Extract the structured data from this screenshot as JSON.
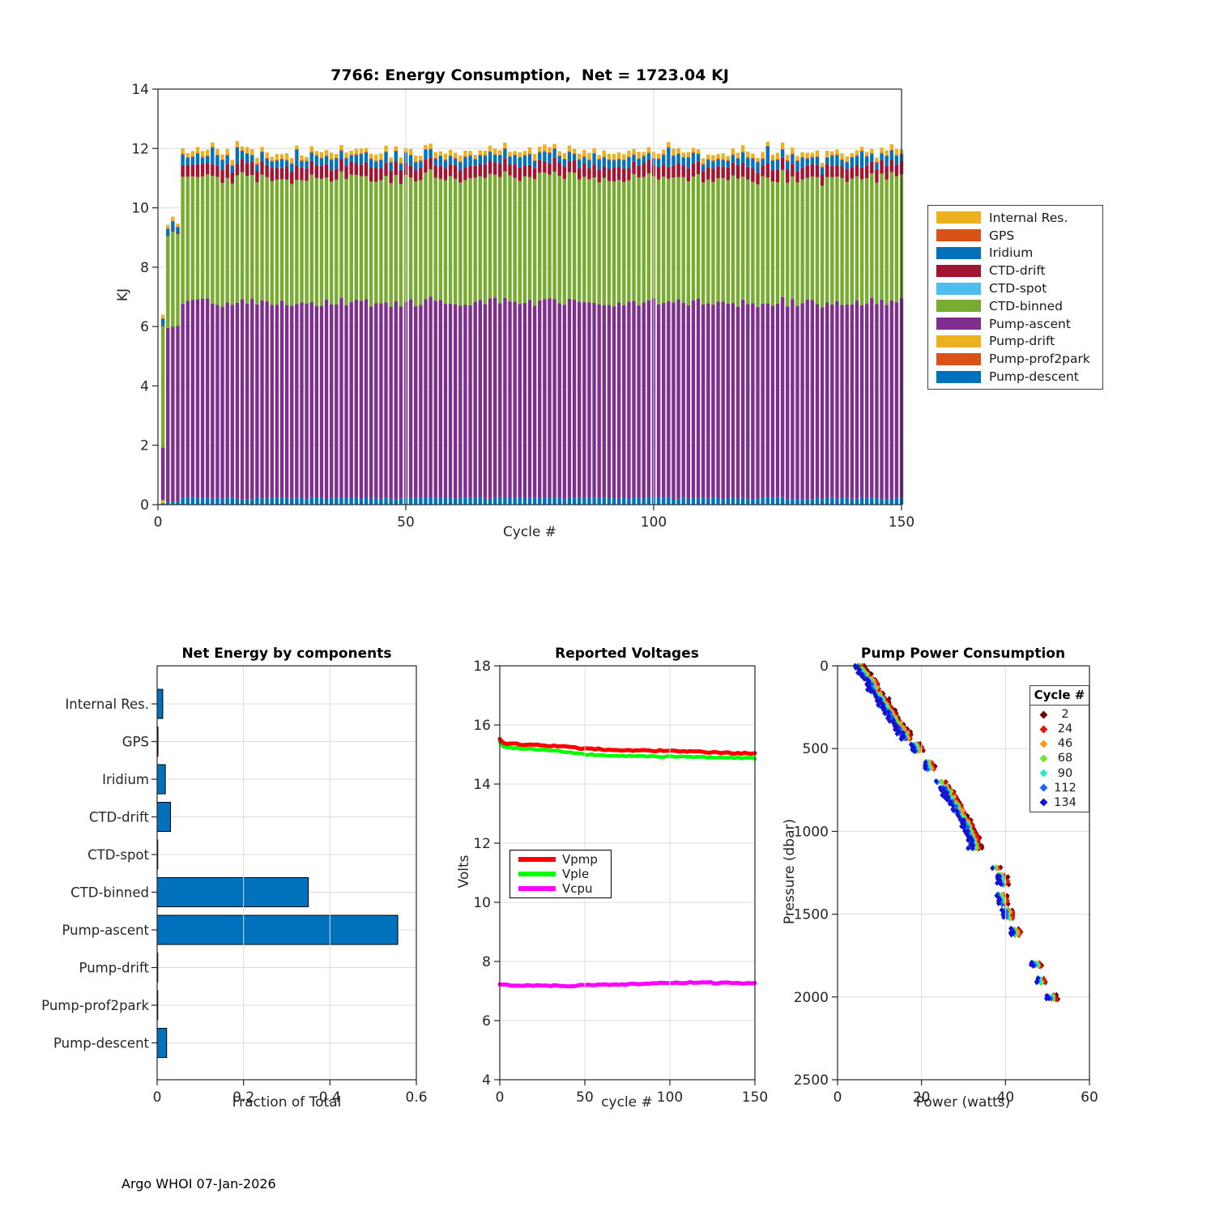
{
  "figure": {
    "footer": "Argo WHOI 07-Jan-2026",
    "background": "#ffffff",
    "axis_color": "#262626",
    "grid_color": "#dcdcdc"
  },
  "chart_data": [
    {
      "id": "energy",
      "type": "bar",
      "stacked": true,
      "title": "7766: Energy Consumption,  Net = 1723.04 KJ",
      "xlabel": "Cycle #",
      "ylabel": "KJ",
      "xlim": [
        0,
        150
      ],
      "ylim": [
        0,
        14
      ],
      "xticks": [
        0,
        50,
        100,
        150
      ],
      "yticks": [
        0,
        2,
        4,
        6,
        8,
        10,
        12,
        14
      ],
      "grid": true,
      "n_cycles": 150,
      "legend": [
        "Internal Res.",
        "GPS",
        "Iridium",
        "CTD-drift",
        "CTD-spot",
        "CTD-binned",
        "Pump-ascent",
        "Pump-drift",
        "Pump-prof2park",
        "Pump-descent"
      ],
      "stack_order": [
        "Pump-descent",
        "Pump-prof2park",
        "Pump-drift",
        "Pump-ascent",
        "CTD-binned",
        "CTD-spot",
        "CTD-drift",
        "Iridium",
        "GPS",
        "Internal Res."
      ],
      "colors": {
        "Internal Res.": "#EDB120",
        "GPS": "#D95319",
        "Iridium": "#0072BD",
        "CTD-drift": "#A2142F",
        "CTD-spot": "#4DBEEE",
        "CTD-binned": "#77AC30",
        "Pump-ascent": "#7E2F8E",
        "Pump-drift": "#EDB120",
        "Pump-prof2park": "#D95319",
        "Pump-descent": "#0072BD"
      },
      "baseline_kj": {
        "Pump-descent": 0.22,
        "Pump-prof2park": 0,
        "Pump-drift": 0,
        "Pump-ascent": 6.6,
        "CTD-binned": 4.2,
        "CTD-spot": 0,
        "CTD-drift": 0.42,
        "Iridium": 0.28,
        "GPS": 0.03,
        "Internal Res.": 0.17
      },
      "variation_kj": {
        "Pump-descent": 0.04,
        "Pump-prof2park": 0,
        "Pump-drift": 0,
        "Pump-ascent": 0.15,
        "CTD-binned": 0.12,
        "CTD-spot": 0,
        "CTD-drift": 0.05,
        "Iridium": 0.08,
        "GPS": 0.005,
        "Internal Res.": 0.05
      },
      "iridium_spike_kj": 0.32,
      "first_cycles": {
        "1": {
          "Pump-descent": 0.05,
          "Pump-prof2park": 0,
          "Pump-drift": 0.1,
          "Pump-ascent": 1.78,
          "CTD-binned": 4.08,
          "CTD-spot": 0,
          "CTD-drift": 0.03,
          "Iridium": 0.22,
          "GPS": 0.02,
          "Internal Res.": 0.12
        },
        "2": {
          "Pump-descent": 0.1,
          "Pump-prof2park": 0,
          "Pump-drift": 0,
          "Pump-ascent": 5.85,
          "CTD-binned": 3.1,
          "CTD-spot": 0,
          "CTD-drift": 0.04,
          "Iridium": 0.2,
          "GPS": 0.02,
          "Internal Res.": 0.12
        },
        "3": {
          "Pump-descent": 0.1,
          "Pump-prof2park": 0,
          "Pump-drift": 0,
          "Pump-ascent": 5.9,
          "CTD-binned": 3.2,
          "CTD-spot": 0,
          "CTD-drift": 0.04,
          "Iridium": 0.3,
          "GPS": 0.02,
          "Internal Res.": 0.14
        },
        "4": {
          "Pump-descent": 0.1,
          "Pump-prof2park": 0,
          "Pump-drift": 0,
          "Pump-ascent": 5.92,
          "CTD-binned": 3.1,
          "CTD-spot": 0,
          "CTD-drift": 0.05,
          "Iridium": 0.18,
          "GPS": 0.02,
          "Internal Res.": 0.1
        }
      },
      "seed": 7766
    },
    {
      "id": "net-energy",
      "type": "bar",
      "orientation": "horizontal",
      "title": "Net Energy by components",
      "xlabel": "Fraction of Total",
      "categories": [
        "Internal Res.",
        "GPS",
        "Iridium",
        "CTD-drift",
        "CTD-spot",
        "CTD-binned",
        "Pump-ascent",
        "Pump-drift",
        "Pump-prof2park",
        "Pump-descent"
      ],
      "values": [
        0.013,
        0.002,
        0.019,
        0.031,
        0.001,
        0.35,
        0.557,
        0.001,
        0.001,
        0.022
      ],
      "xlim": [
        0,
        0.6
      ],
      "xticks": [
        0,
        0.2,
        0.4,
        0.6
      ],
      "grid": true,
      "bar_color": "#0072BD",
      "bar_edge": "#000000"
    },
    {
      "id": "voltages",
      "type": "line",
      "title": "Reported Voltages",
      "xlabel": "cycle #",
      "ylabel": "Volts",
      "xlim": [
        0,
        150
      ],
      "ylim": [
        4,
        18
      ],
      "xticks": [
        0,
        50,
        100,
        150
      ],
      "yticks": [
        4,
        6,
        8,
        10,
        12,
        14,
        16,
        18
      ],
      "grid": true,
      "series": [
        {
          "name": "Vpmp",
          "color": "#FF0000",
          "width": 5,
          "points": [
            [
              0,
              15.5
            ],
            [
              2,
              15.38
            ],
            [
              10,
              15.35
            ],
            [
              30,
              15.3
            ],
            [
              50,
              15.2
            ],
            [
              70,
              15.15
            ],
            [
              100,
              15.12
            ],
            [
              130,
              15.06
            ],
            [
              150,
              15.03
            ]
          ]
        },
        {
          "name": "Vple",
          "color": "#00FF00",
          "width": 4.5,
          "points": [
            [
              0,
              15.45
            ],
            [
              2,
              15.25
            ],
            [
              10,
              15.22
            ],
            [
              30,
              15.15
            ],
            [
              50,
              15.0
            ],
            [
              70,
              14.95
            ],
            [
              100,
              14.93
            ],
            [
              130,
              14.9
            ],
            [
              150,
              14.88
            ]
          ]
        },
        {
          "name": "Vcpu",
          "color": "#FF00FF",
          "width": 5,
          "points": [
            [
              0,
              7.2
            ],
            [
              40,
              7.18
            ],
            [
              80,
              7.24
            ],
            [
              110,
              7.28
            ],
            [
              150,
              7.27
            ]
          ]
        }
      ]
    },
    {
      "id": "pump-power",
      "type": "scatter",
      "title": "Pump Power Consumption",
      "xlabel": "Power (watts)",
      "ylabel": "Pressure (dbar)",
      "xlim": [
        0,
        60
      ],
      "ylim": [
        0,
        2500
      ],
      "y_reversed": true,
      "xticks": [
        0,
        20,
        40,
        60
      ],
      "yticks": [
        0,
        500,
        1000,
        1500,
        2000,
        2500
      ],
      "grid": true,
      "legend_title": "Cycle #",
      "series": [
        {
          "name": "2",
          "color": "#700000",
          "power_offset": 1.5
        },
        {
          "name": "24",
          "color": "#E81400",
          "power_offset": 1.1
        },
        {
          "name": "46",
          "color": "#F59B1E",
          "power_offset": 0.7
        },
        {
          "name": "68",
          "color": "#6FE32E",
          "power_offset": 0.35
        },
        {
          "name": "90",
          "color": "#2BE8C8",
          "power_offset": 0.1
        },
        {
          "name": "112",
          "color": "#1E64F0",
          "power_offset": -0.2
        },
        {
          "name": "134",
          "color": "#1512D1",
          "power_offset": -0.5
        }
      ],
      "profile_pressure_power_count": [
        [
          0,
          4.8,
          2
        ],
        [
          15,
          5.1,
          1
        ],
        [
          30,
          5.6,
          2
        ],
        [
          45,
          6.0,
          1
        ],
        [
          60,
          6.4,
          2
        ],
        [
          80,
          6.9,
          1
        ],
        [
          100,
          7.4,
          3
        ],
        [
          115,
          7.7,
          4
        ],
        [
          130,
          8.1,
          4
        ],
        [
          145,
          8.5,
          2
        ],
        [
          160,
          8.9,
          1
        ],
        [
          180,
          9.4,
          2
        ],
        [
          200,
          10.0,
          2
        ],
        [
          220,
          10.5,
          3
        ],
        [
          240,
          11.0,
          2
        ],
        [
          260,
          11.5,
          2
        ],
        [
          280,
          12.0,
          2
        ],
        [
          300,
          12.5,
          3
        ],
        [
          320,
          13.0,
          2
        ],
        [
          340,
          13.5,
          2
        ],
        [
          360,
          14.0,
          2
        ],
        [
          380,
          14.5,
          2
        ],
        [
          400,
          15.0,
          3
        ],
        [
          420,
          15.7,
          3
        ],
        [
          430,
          16.0,
          2
        ],
        [
          490,
          18.3,
          3
        ],
        [
          505,
          18.7,
          2
        ],
        [
          600,
          21.3,
          3
        ],
        [
          615,
          21.7,
          2
        ],
        [
          700,
          24.2,
          1
        ],
        [
          740,
          25.2,
          2
        ],
        [
          760,
          25.7,
          3
        ],
        [
          780,
          26.2,
          3
        ],
        [
          800,
          26.8,
          2
        ],
        [
          830,
          27.5,
          2
        ],
        [
          860,
          28.2,
          3
        ],
        [
          890,
          28.9,
          2
        ],
        [
          920,
          29.6,
          2
        ],
        [
          950,
          30.3,
          3
        ],
        [
          980,
          30.9,
          3
        ],
        [
          1010,
          31.4,
          2
        ],
        [
          1040,
          31.8,
          3
        ],
        [
          1060,
          32.2,
          3
        ],
        [
          1090,
          32.7,
          2
        ],
        [
          1100,
          31.9,
          1
        ],
        [
          1220,
          37.3,
          1
        ],
        [
          1270,
          38.3,
          2
        ],
        [
          1290,
          38.8,
          3
        ],
        [
          1310,
          39.2,
          2
        ],
        [
          1400,
          38.6,
          3
        ],
        [
          1420,
          39.1,
          3
        ],
        [
          1490,
          39.9,
          3
        ],
        [
          1505,
          40.3,
          3
        ],
        [
          1600,
          41.6,
          2
        ],
        [
          1615,
          42.1,
          2
        ],
        [
          1800,
          46.9,
          2
        ],
        [
          1810,
          47.2,
          1
        ],
        [
          1900,
          47.9,
          2
        ],
        [
          1910,
          48.2,
          1
        ],
        [
          2000,
          50.6,
          2
        ],
        [
          2010,
          50.9,
          1
        ]
      ],
      "seed": 42
    }
  ]
}
